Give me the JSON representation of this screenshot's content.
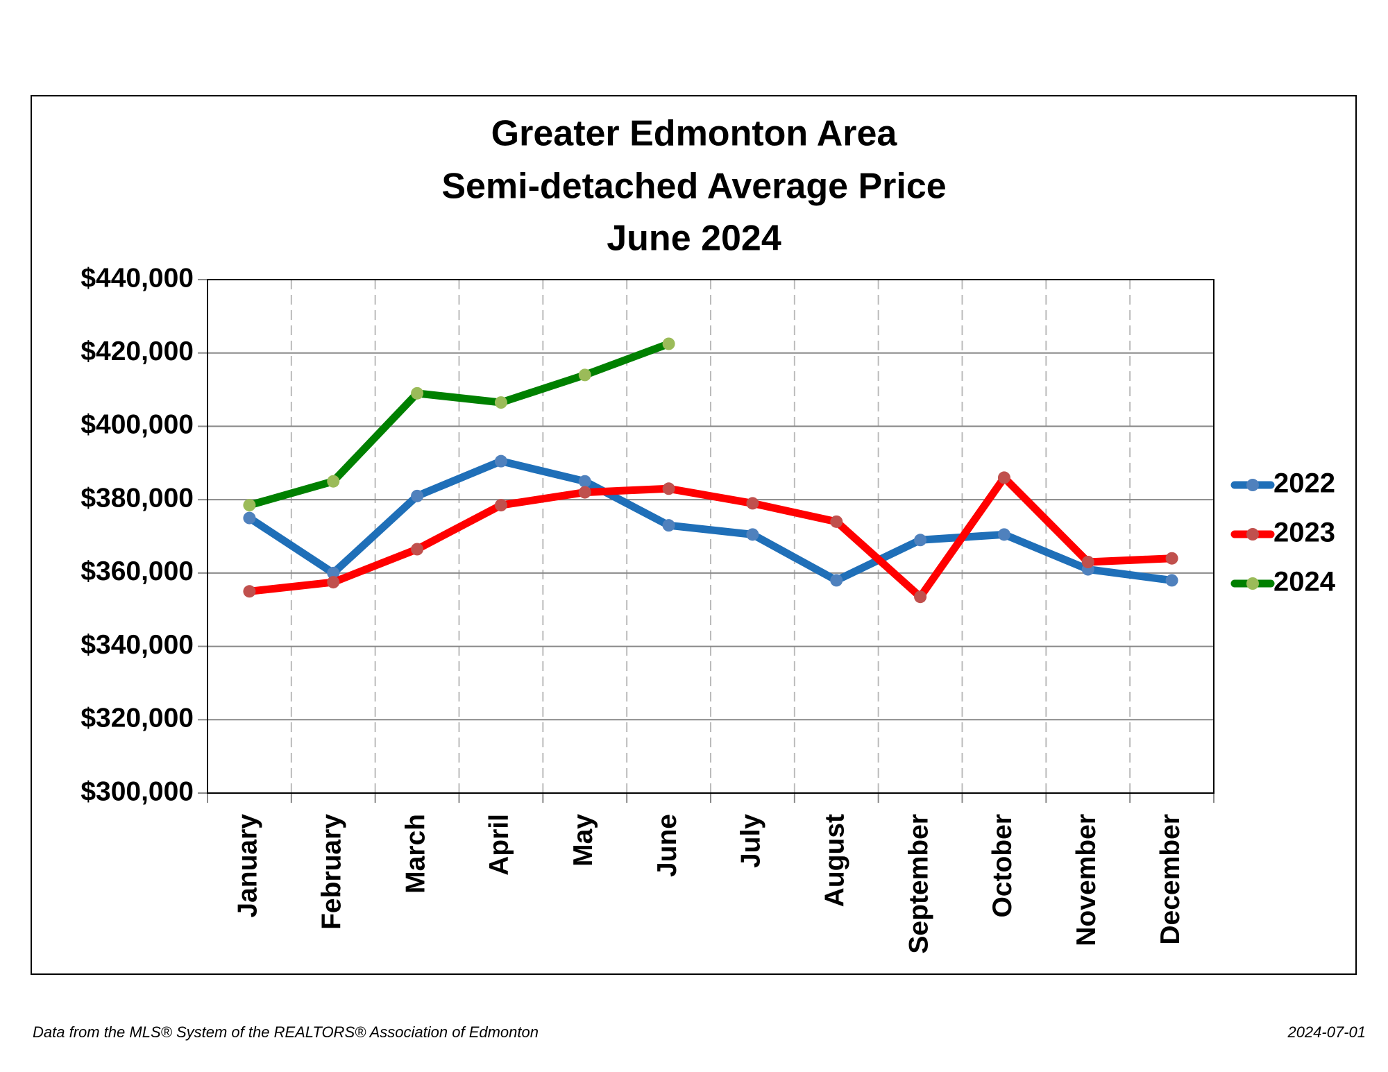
{
  "chart_data": {
    "type": "line",
    "title": [
      "Greater Edmonton Area",
      "Semi-detached Average Price",
      "June 2024"
    ],
    "categories": [
      "January",
      "February",
      "March",
      "April",
      "May",
      "June",
      "July",
      "August",
      "September",
      "October",
      "November",
      "December"
    ],
    "series": [
      {
        "name": "2022",
        "color": "#1f6fb8",
        "marker_color": "#4f81bd",
        "values": [
          375000,
          360000,
          381000,
          390500,
          385000,
          373000,
          370500,
          358000,
          369000,
          370500,
          361000,
          358000
        ]
      },
      {
        "name": "2023",
        "color": "#ff0000",
        "marker_color": "#c0504d",
        "values": [
          355000,
          357500,
          366500,
          378500,
          382000,
          383000,
          379000,
          374000,
          353500,
          386000,
          363000,
          364000
        ]
      },
      {
        "name": "2024",
        "color": "#008000",
        "marker_color": "#9bbb59",
        "values": [
          378500,
          385000,
          409000,
          406500,
          414000,
          422500,
          null,
          null,
          null,
          null,
          null,
          null
        ]
      }
    ],
    "ylim": [
      300000,
      440000
    ],
    "yticks": [
      {
        "value": 300000,
        "label": "$300,000"
      },
      {
        "value": 320000,
        "label": "$320,000"
      },
      {
        "value": 340000,
        "label": "$340,000"
      },
      {
        "value": 360000,
        "label": "$360,000"
      },
      {
        "value": 380000,
        "label": "$380,000"
      },
      {
        "value": 400000,
        "label": "$400,000"
      },
      {
        "value": 420000,
        "label": "$420,000"
      },
      {
        "value": 440000,
        "label": "$440,000"
      }
    ],
    "grid": true,
    "legend": "right",
    "source": "Data from the MLS® System of the REALTORS® Association of Edmonton",
    "date": "2024-07-01"
  }
}
